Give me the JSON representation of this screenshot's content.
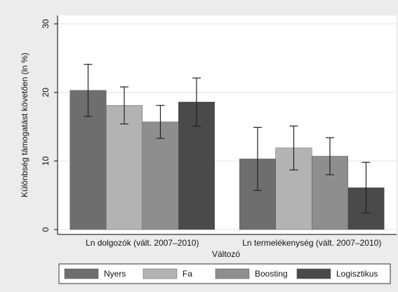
{
  "chart_data": {
    "type": "bar",
    "y_label": "Különbség támogatást követően (ln %)",
    "x_label": "Változó",
    "categories": [
      "Ln dolgozók (vált. 2007–2010)",
      "Ln termelékenység (vált. 2007–2010)"
    ],
    "series": [
      {
        "name": "Nyers",
        "color": "#6e6e6e",
        "values": [
          20.3,
          10.3
        ],
        "errors": [
          3.8,
          4.6
        ]
      },
      {
        "name": "Fa",
        "color": "#b3b3b3",
        "values": [
          18.1,
          11.9
        ],
        "errors": [
          2.7,
          3.2
        ]
      },
      {
        "name": "Boosting",
        "color": "#8e8e8e",
        "values": [
          15.7,
          10.7
        ],
        "errors": [
          2.4,
          2.7
        ]
      },
      {
        "name": "Logisztikus",
        "color": "#4a4a4a",
        "values": [
          18.6,
          6.1
        ],
        "errors": [
          3.5,
          3.7
        ]
      }
    ],
    "ylim": [
      0,
      30
    ],
    "yticks": [
      0,
      10,
      20,
      30
    ],
    "grid": true,
    "legend": "bottom"
  }
}
